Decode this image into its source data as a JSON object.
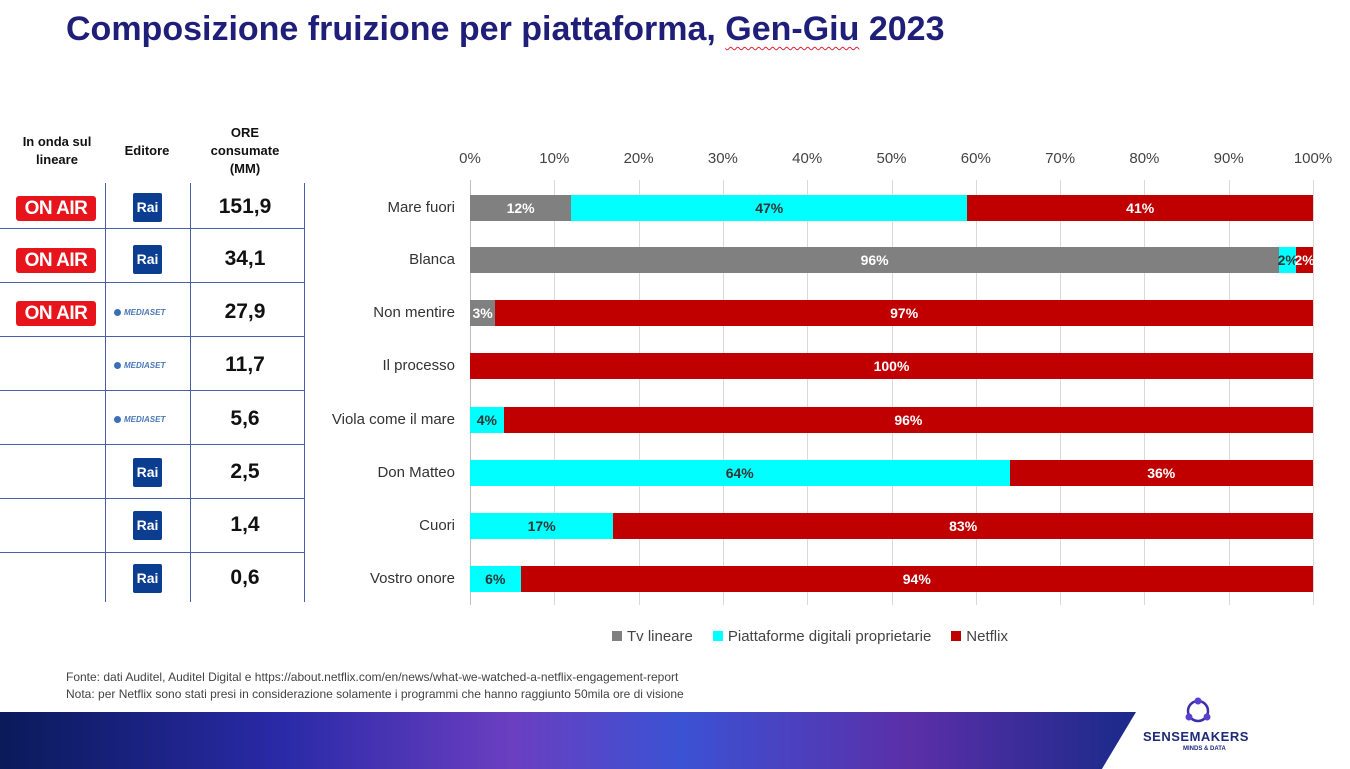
{
  "title": {
    "main": "Composizione fruizione per piattaforma, ",
    "underlined": "Gen-Giu",
    "tail": " 2023"
  },
  "headers": {
    "on_air": "In onda sul lineare",
    "editor": "Editore",
    "hours": "ORE consumate (MM)"
  },
  "badge_on_air": "ON AIR",
  "editor_labels": {
    "rai": "Rai",
    "mediaset": "MEDIASET"
  },
  "rows": [
    {
      "on_air": true,
      "editor": "rai",
      "hours": "151,9"
    },
    {
      "on_air": true,
      "editor": "rai",
      "hours": "34,1"
    },
    {
      "on_air": true,
      "editor": "mediaset",
      "hours": "27,9"
    },
    {
      "on_air": false,
      "editor": "mediaset",
      "hours": "11,7"
    },
    {
      "on_air": false,
      "editor": "mediaset",
      "hours": "5,6"
    },
    {
      "on_air": false,
      "editor": "rai",
      "hours": "2,5"
    },
    {
      "on_air": false,
      "editor": "rai",
      "hours": "1,4"
    },
    {
      "on_air": false,
      "editor": "rai",
      "hours": "0,6"
    }
  ],
  "chart_data": {
    "type": "bar",
    "orientation": "horizontal",
    "stacked": "percent",
    "categories": [
      "Mare fuori",
      "Blanca",
      "Non mentire",
      "Il processo",
      "Viola come il mare",
      "Don Matteo",
      "Cuori",
      "Vostro onore"
    ],
    "series": [
      {
        "name": "Tv lineare",
        "color": "#808080",
        "values": [
          12,
          96,
          3,
          0,
          0,
          0,
          0,
          0
        ]
      },
      {
        "name": "Piattaforme digitali proprietarie",
        "color": "#00ffff",
        "values": [
          47,
          2,
          0,
          0,
          4,
          64,
          17,
          6
        ]
      },
      {
        "name": "Netflix",
        "color": "#c00000",
        "values": [
          41,
          2,
          97,
          100,
          96,
          36,
          83,
          94
        ]
      }
    ],
    "x_ticks": [
      "0%",
      "10%",
      "20%",
      "30%",
      "40%",
      "50%",
      "60%",
      "70%",
      "80%",
      "90%",
      "100%"
    ],
    "xlim": [
      0,
      100
    ],
    "legend_position": "bottom"
  },
  "notes": {
    "source": "Fonte: dati Auditel, Auditel Digital e https://about.netflix.com/en/news/what-we-watched-a-netflix-engagement-report",
    "note": "Nota: per Netflix sono stati presi in considerazione solamente i programmi che hanno raggiunto 50mila ore di visione"
  },
  "brand": {
    "name": "SENSEMAKERS",
    "tagline": "MINDS & DATA"
  }
}
